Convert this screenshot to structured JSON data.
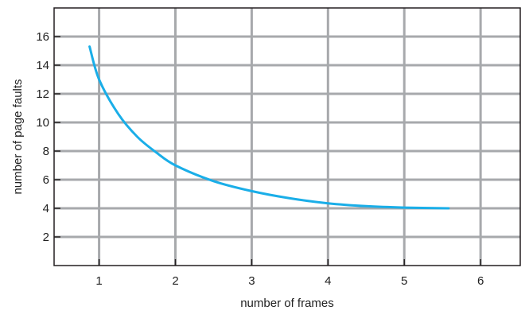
{
  "chart_data": {
    "type": "line",
    "title": "",
    "xlabel": "number of frames",
    "ylabel": "number of page faults",
    "xlim": [
      0.41,
      6.52
    ],
    "ylim": [
      0,
      18
    ],
    "x_ticks": [
      1,
      2,
      3,
      4,
      5,
      6
    ],
    "y_ticks": [
      2,
      4,
      6,
      8,
      10,
      12,
      14,
      16
    ],
    "grid": true,
    "series": [
      {
        "color": "#1aaee8",
        "points": [
          [
            0.875,
            15.3
          ],
          [
            1.0,
            13.0
          ],
          [
            1.25,
            10.6
          ],
          [
            1.5,
            9.0
          ],
          [
            1.75,
            7.9
          ],
          [
            2.0,
            7.0
          ],
          [
            2.5,
            5.9
          ],
          [
            3.0,
            5.2
          ],
          [
            3.5,
            4.7
          ],
          [
            4.0,
            4.35
          ],
          [
            4.5,
            4.15
          ],
          [
            5.0,
            4.05
          ],
          [
            5.58,
            4.0
          ]
        ]
      }
    ],
    "grid_color": "#a7a9ac",
    "axis_color": "#231f20"
  }
}
